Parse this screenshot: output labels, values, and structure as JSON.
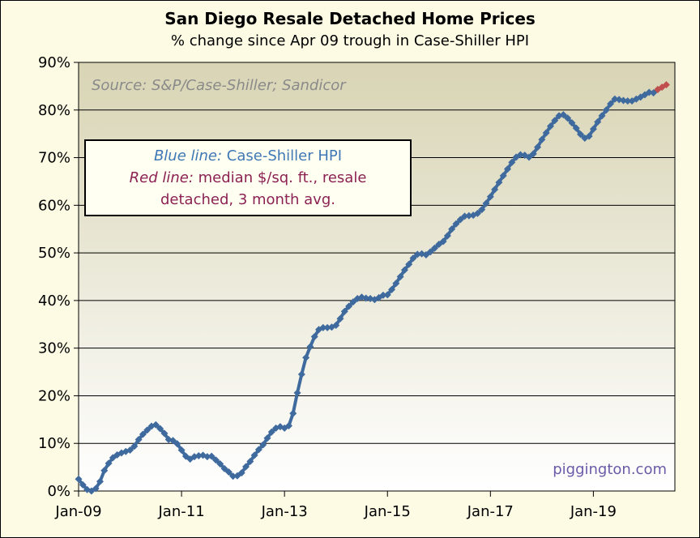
{
  "chart_data": {
    "type": "line",
    "title": "San Diego Resale Detached Home Prices",
    "subtitle": "% change since Apr 09 trough in Case-Shiller HPI",
    "y_ticks": [
      "0%",
      "10%",
      "20%",
      "30%",
      "40%",
      "50%",
      "60%",
      "70%",
      "80%",
      "90%"
    ],
    "ylim": [
      0,
      90
    ],
    "y_unit": "%",
    "x_tick_labels": [
      "Jan-09",
      "Jan-11",
      "Jan-13",
      "Jan-15",
      "Jan-17",
      "Jan-19"
    ],
    "x_tick_dates": [
      "2009-01",
      "2011-01",
      "2013-01",
      "2015-01",
      "2017-01",
      "2019-01"
    ],
    "xlim": [
      "2009-01",
      "2020-08"
    ],
    "grid": "horizontal",
    "source_note": "Source: S&P/Case-Shiller; Sandicor",
    "credit": "piggington.com",
    "legend": {
      "blue_label": "Blue line:",
      "blue_text": "Case-Shiller HPI",
      "red_label": "Red line:",
      "red_text_1": "median $/sq. ft., resale",
      "red_text_2": "detached, 3 month avg."
    },
    "colors": {
      "blue_series": "#3f6a9e",
      "red_series": "#c0504d",
      "plot_background_top": "#d8d4b4",
      "plot_background_bottom": "#ffffff"
    },
    "series": [
      {
        "color": "blue",
        "points": [
          [
            "2009-01",
            2.5
          ],
          [
            "2009-02",
            1.3
          ],
          [
            "2009-03",
            0.3
          ],
          [
            "2009-04",
            0.0
          ],
          [
            "2009-05",
            0.5
          ],
          [
            "2009-06",
            2.0
          ],
          [
            "2009-07",
            4.3
          ],
          [
            "2009-08",
            5.8
          ],
          [
            "2009-09",
            7.0
          ],
          [
            "2009-10",
            7.6
          ],
          [
            "2009-11",
            8.0
          ],
          [
            "2009-12",
            8.3
          ],
          [
            "2010-01",
            8.6
          ],
          [
            "2010-02",
            9.4
          ],
          [
            "2010-03",
            10.8
          ],
          [
            "2010-04",
            11.9
          ],
          [
            "2010-05",
            12.8
          ],
          [
            "2010-06",
            13.6
          ],
          [
            "2010-07",
            13.9
          ],
          [
            "2010-08",
            13.1
          ],
          [
            "2010-09",
            12.1
          ],
          [
            "2010-10",
            10.8
          ],
          [
            "2010-11",
            10.6
          ],
          [
            "2010-12",
            9.9
          ],
          [
            "2011-01",
            8.6
          ],
          [
            "2011-02",
            7.3
          ],
          [
            "2011-03",
            6.7
          ],
          [
            "2011-04",
            7.2
          ],
          [
            "2011-05",
            7.4
          ],
          [
            "2011-06",
            7.5
          ],
          [
            "2011-07",
            7.2
          ],
          [
            "2011-08",
            7.3
          ],
          [
            "2011-09",
            6.5
          ],
          [
            "2011-10",
            5.7
          ],
          [
            "2011-11",
            4.7
          ],
          [
            "2011-12",
            4.0
          ],
          [
            "2012-01",
            3.1
          ],
          [
            "2012-02",
            3.2
          ],
          [
            "2012-03",
            3.8
          ],
          [
            "2012-04",
            5.1
          ],
          [
            "2012-05",
            6.2
          ],
          [
            "2012-06",
            7.5
          ],
          [
            "2012-07",
            8.7
          ],
          [
            "2012-08",
            9.7
          ],
          [
            "2012-09",
            11.1
          ],
          [
            "2012-10",
            12.4
          ],
          [
            "2012-11",
            13.2
          ],
          [
            "2012-12",
            13.5
          ],
          [
            "2013-01",
            13.2
          ],
          [
            "2013-02",
            13.7
          ],
          [
            "2013-03",
            16.3
          ],
          [
            "2013-04",
            20.6
          ],
          [
            "2013-05",
            24.5
          ],
          [
            "2013-06",
            28.0
          ],
          [
            "2013-07",
            30.3
          ],
          [
            "2013-08",
            32.4
          ],
          [
            "2013-09",
            33.9
          ],
          [
            "2013-10",
            34.3
          ],
          [
            "2013-11",
            34.3
          ],
          [
            "2013-12",
            34.4
          ],
          [
            "2014-01",
            34.8
          ],
          [
            "2014-02",
            36.2
          ],
          [
            "2014-03",
            37.7
          ],
          [
            "2014-04",
            38.8
          ],
          [
            "2014-05",
            39.7
          ],
          [
            "2014-06",
            40.4
          ],
          [
            "2014-07",
            40.7
          ],
          [
            "2014-08",
            40.5
          ],
          [
            "2014-09",
            40.4
          ],
          [
            "2014-10",
            40.2
          ],
          [
            "2014-11",
            40.6
          ],
          [
            "2014-12",
            41.1
          ],
          [
            "2015-01",
            41.2
          ],
          [
            "2015-02",
            42.3
          ],
          [
            "2015-03",
            43.6
          ],
          [
            "2015-04",
            45.0
          ],
          [
            "2015-05",
            46.4
          ],
          [
            "2015-06",
            47.6
          ],
          [
            "2015-07",
            48.9
          ],
          [
            "2015-08",
            49.7
          ],
          [
            "2015-09",
            49.8
          ],
          [
            "2015-10",
            49.6
          ],
          [
            "2015-11",
            50.2
          ],
          [
            "2015-12",
            51.0
          ],
          [
            "2016-01",
            51.8
          ],
          [
            "2016-02",
            52.4
          ],
          [
            "2016-03",
            53.6
          ],
          [
            "2016-04",
            55.0
          ],
          [
            "2016-05",
            56.1
          ],
          [
            "2016-06",
            57.0
          ],
          [
            "2016-07",
            57.7
          ],
          [
            "2016-08",
            57.8
          ],
          [
            "2016-09",
            57.9
          ],
          [
            "2016-10",
            58.3
          ],
          [
            "2016-11",
            59.1
          ],
          [
            "2016-12",
            60.4
          ],
          [
            "2017-01",
            61.8
          ],
          [
            "2017-02",
            63.3
          ],
          [
            "2017-03",
            64.8
          ],
          [
            "2017-04",
            66.2
          ],
          [
            "2017-05",
            67.6
          ],
          [
            "2017-06",
            69.0
          ],
          [
            "2017-07",
            70.1
          ],
          [
            "2017-08",
            70.6
          ],
          [
            "2017-09",
            70.5
          ],
          [
            "2017-10",
            70.1
          ],
          [
            "2017-11",
            70.8
          ],
          [
            "2017-12",
            72.2
          ],
          [
            "2018-01",
            73.8
          ],
          [
            "2018-02",
            75.2
          ],
          [
            "2018-03",
            76.6
          ],
          [
            "2018-04",
            77.8
          ],
          [
            "2018-05",
            78.8
          ],
          [
            "2018-06",
            79.0
          ],
          [
            "2018-07",
            78.3
          ],
          [
            "2018-08",
            77.3
          ],
          [
            "2018-09",
            76.2
          ],
          [
            "2018-10",
            74.9
          ],
          [
            "2018-11",
            74.1
          ],
          [
            "2018-12",
            74.5
          ],
          [
            "2019-01",
            76.0
          ],
          [
            "2019-02",
            77.5
          ],
          [
            "2019-03",
            78.8
          ],
          [
            "2019-04",
            80.0
          ],
          [
            "2019-05",
            81.3
          ],
          [
            "2019-06",
            82.3
          ],
          [
            "2019-07",
            82.2
          ],
          [
            "2019-08",
            82.0
          ],
          [
            "2019-09",
            81.9
          ],
          [
            "2019-10",
            81.9
          ],
          [
            "2019-11",
            82.3
          ],
          [
            "2019-12",
            82.7
          ],
          [
            "2020-01",
            83.2
          ],
          [
            "2020-02",
            83.7
          ],
          [
            "2020-03",
            83.6
          ],
          [
            "2020-04",
            84.3
          ]
        ]
      },
      {
        "color": "red",
        "points": [
          [
            "2020-04",
            84.3
          ],
          [
            "2020-05",
            84.8
          ],
          [
            "2020-06",
            85.3
          ]
        ]
      }
    ]
  }
}
